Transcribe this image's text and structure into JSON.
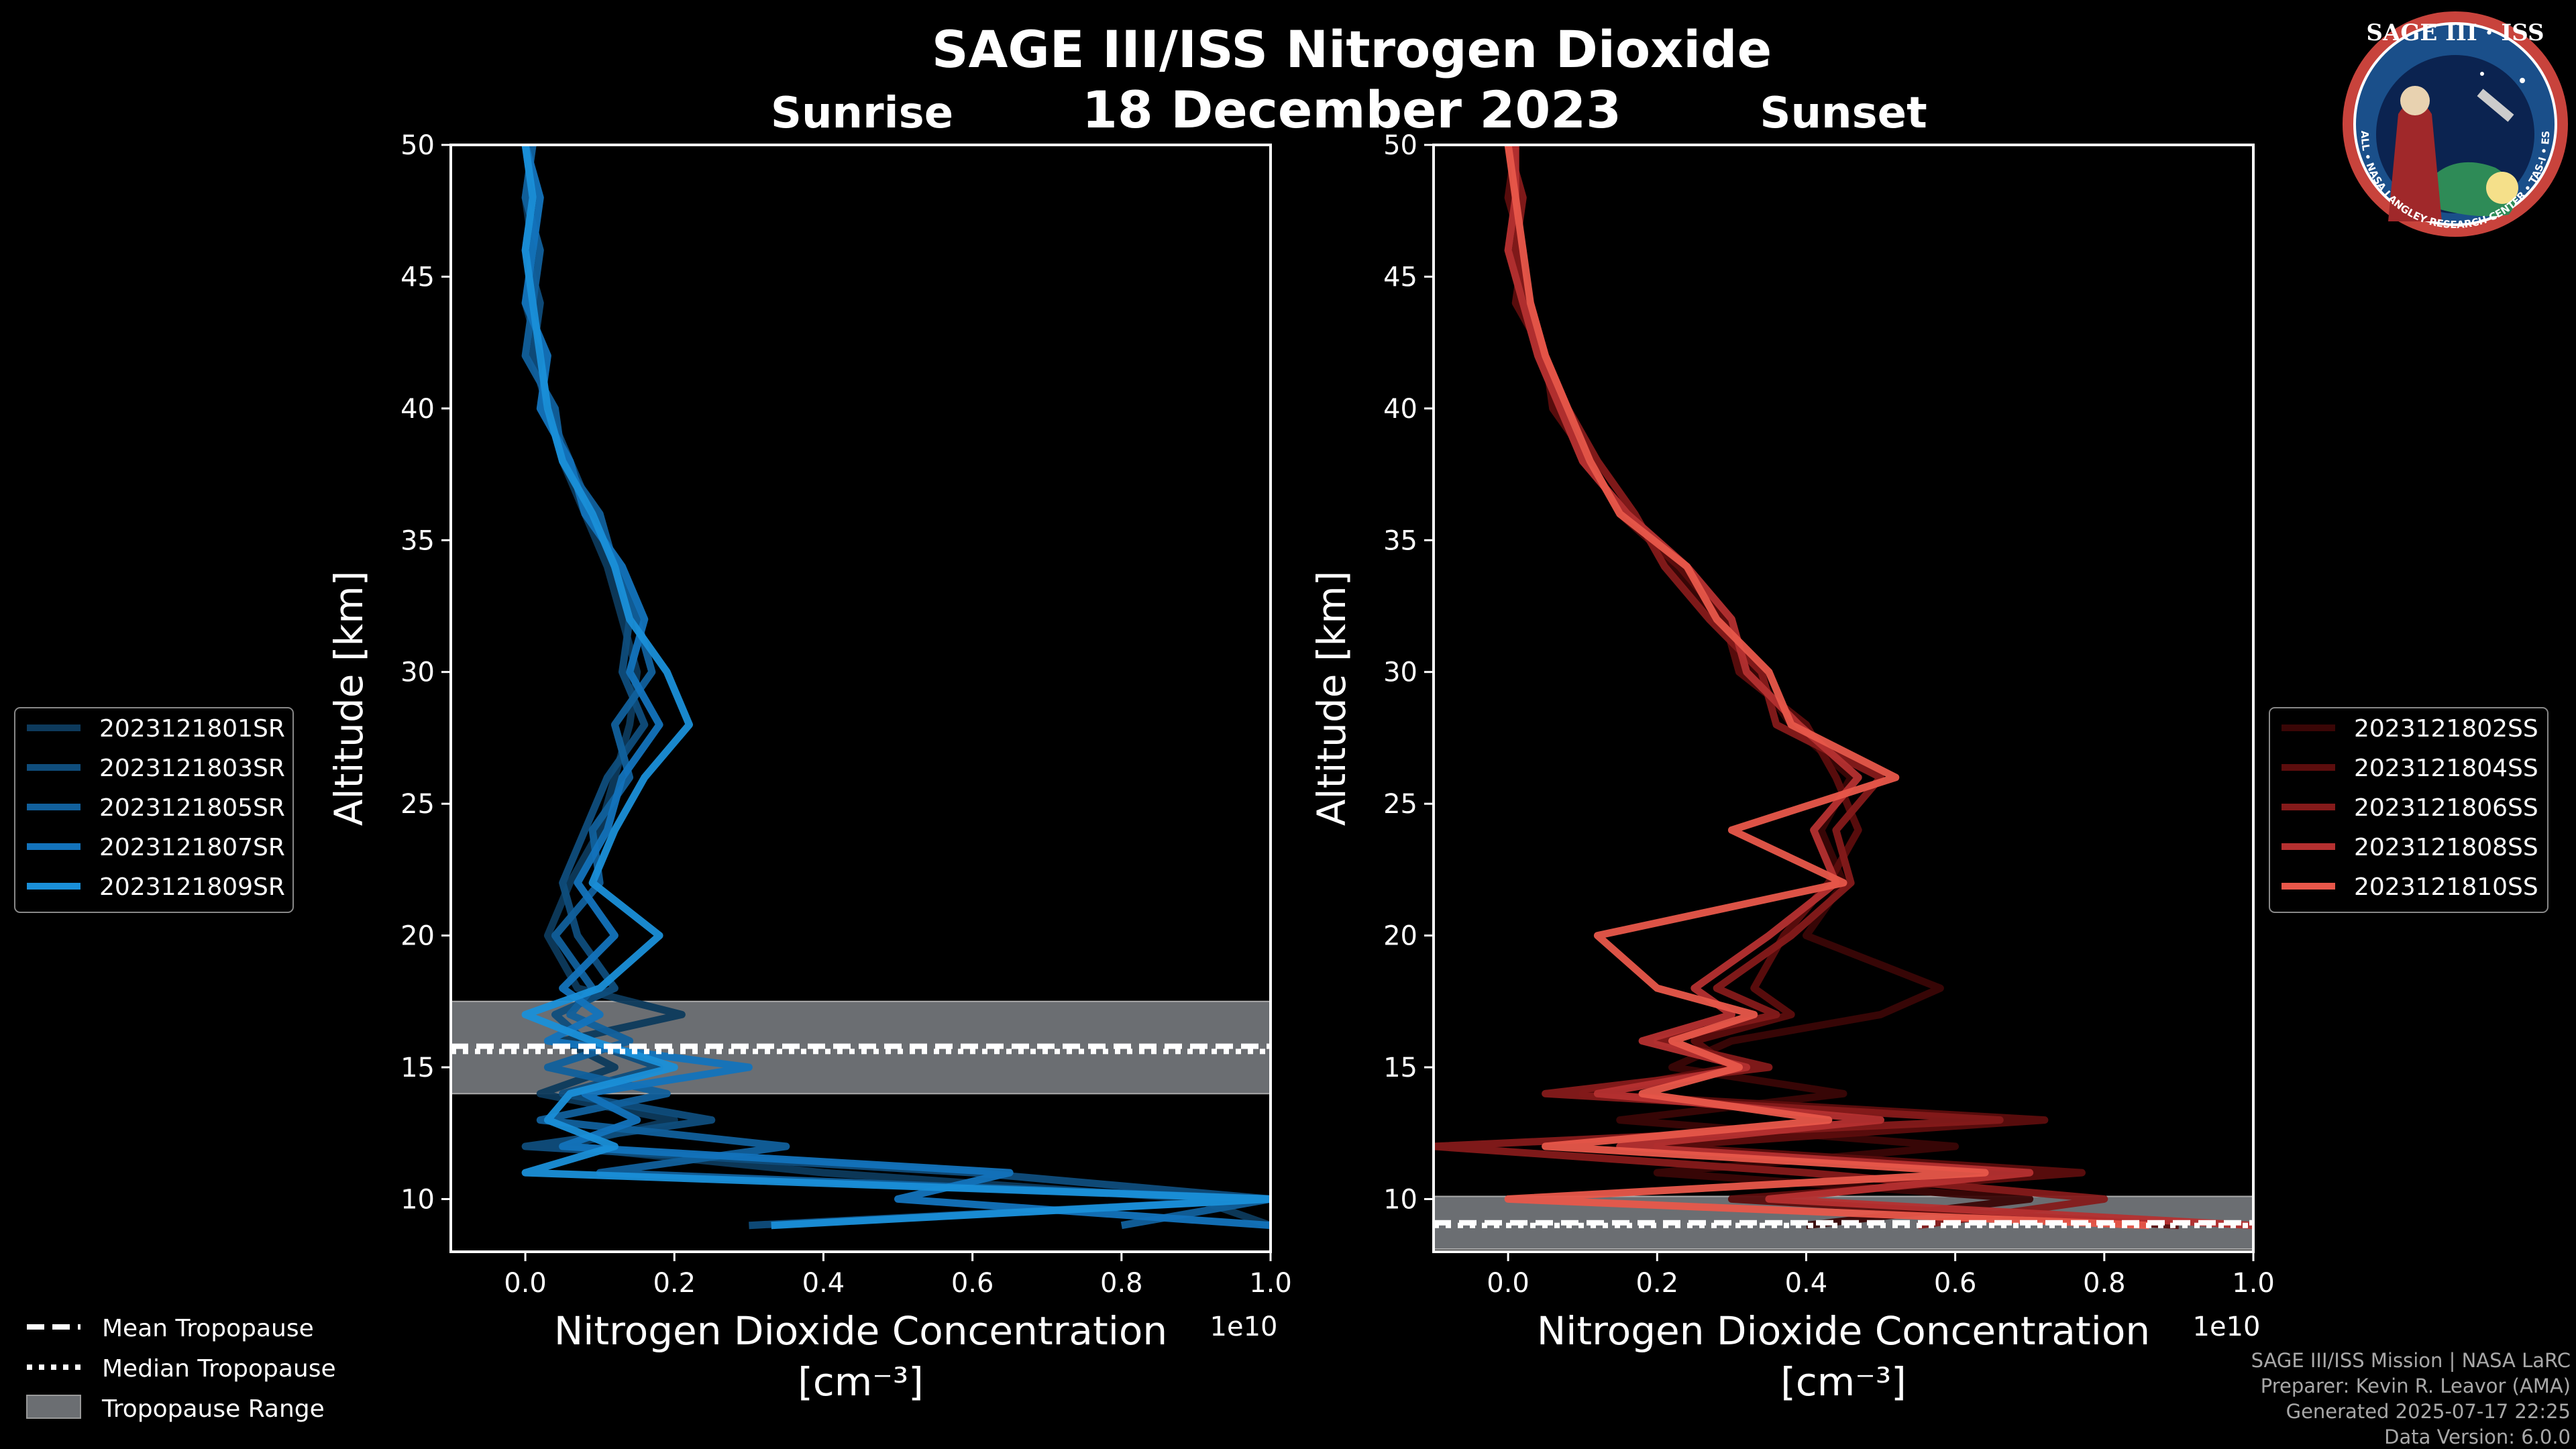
{
  "header": {
    "title": "SAGE III/ISS Nitrogen Dioxide",
    "date": "18 December 2023"
  },
  "logo": {
    "top_text": "SAGE III · ISS",
    "ring_text": "BALL • NASA LANGLEY RESEARCH CENTER • TAS-I • ESA",
    "colors": {
      "ring": "#c8433c",
      "inner": "#1a4f8a",
      "space": "#0b2350"
    }
  },
  "credits": {
    "line1": "SAGE III/ISS Mission | NASA LaRC",
    "line2": "Preparer: Kevin R. Leavor (AMA)",
    "line3": "Generated 2025-07-17 22:25",
    "line4": "Data Version: 6.0.0"
  },
  "tropopause_legend": {
    "mean": "Mean Tropopause",
    "median": "Median Tropopause",
    "range": "Tropopause Range"
  },
  "chart_data": [
    {
      "type": "line",
      "panel": "sunrise",
      "title": "Sunrise",
      "xlabel": "Nitrogen Dioxide Concentration",
      "xunit": "[cm⁻³]",
      "xscale_label": "1e10",
      "ylabel": "Altitude [km]",
      "xlim": [
        -0.1,
        1.0
      ],
      "ylim": [
        8,
        50
      ],
      "xticks": [
        "0.0",
        "0.2",
        "0.4",
        "0.6",
        "0.8",
        "1.0"
      ],
      "yticks": [
        "10",
        "15",
        "20",
        "25",
        "30",
        "35",
        "40",
        "45",
        "50"
      ],
      "legend_position": "left",
      "tropopause": {
        "mean": 15.8,
        "median": 15.6,
        "range": [
          14.0,
          17.5
        ]
      },
      "colors": [
        "#0d3a5c",
        "#0f4d7c",
        "#11609c",
        "#1373bc",
        "#1a8fd8"
      ],
      "series": [
        {
          "name": "2023121801SR",
          "alt": [
            50,
            48,
            46,
            44,
            42,
            40,
            38,
            36,
            34,
            32,
            30,
            28,
            26,
            24,
            22,
            20,
            18,
            17,
            16,
            15,
            14,
            13,
            12,
            11,
            10,
            9
          ],
          "x": [
            0.01,
            0.0,
            0.01,
            0.0,
            0.02,
            0.03,
            0.05,
            0.08,
            0.11,
            0.13,
            0.15,
            0.14,
            0.12,
            0.1,
            0.06,
            0.03,
            0.07,
            0.21,
            0.05,
            0.12,
            0.02,
            0.2,
            0.05,
            0.4,
            0.9,
            1.0
          ]
        },
        {
          "name": "2023121803SR",
          "alt": [
            50,
            48,
            46,
            44,
            42,
            40,
            38,
            36,
            34,
            32,
            30,
            28,
            26,
            24,
            22,
            20,
            18,
            17,
            16,
            15,
            14,
            13,
            12,
            11,
            10,
            9
          ],
          "x": [
            0.0,
            0.01,
            0.0,
            0.02,
            0.01,
            0.03,
            0.06,
            0.09,
            0.12,
            0.14,
            0.13,
            0.16,
            0.11,
            0.08,
            0.05,
            0.07,
            0.12,
            0.04,
            0.08,
            0.18,
            0.05,
            0.25,
            0.0,
            0.6,
            1.0,
            0.3
          ]
        },
        {
          "name": "2023121805SR",
          "alt": [
            50,
            48,
            46,
            44,
            42,
            40,
            38,
            36,
            34,
            32,
            30,
            28,
            26,
            24,
            22,
            20,
            18,
            17,
            16,
            15,
            14,
            13,
            12,
            11,
            10,
            9
          ],
          "x": [
            0.01,
            0.0,
            0.02,
            0.01,
            0.0,
            0.04,
            0.05,
            0.1,
            0.12,
            0.15,
            0.17,
            0.12,
            0.14,
            0.09,
            0.1,
            0.04,
            0.09,
            0.06,
            0.14,
            0.03,
            0.19,
            0.02,
            0.35,
            0.1,
            1.0,
            0.8
          ]
        },
        {
          "name": "2023121807SR",
          "alt": [
            50,
            48,
            46,
            44,
            42,
            40,
            38,
            36,
            34,
            32,
            30,
            28,
            26,
            24,
            22,
            20,
            18,
            17,
            16,
            15,
            14,
            13,
            12,
            11,
            10,
            9
          ],
          "x": [
            0.0,
            0.02,
            0.01,
            0.0,
            0.03,
            0.02,
            0.06,
            0.08,
            0.13,
            0.16,
            0.14,
            0.18,
            0.13,
            0.11,
            0.07,
            0.12,
            0.05,
            0.1,
            0.03,
            0.3,
            0.08,
            0.15,
            0.05,
            0.65,
            0.5,
            1.0
          ]
        },
        {
          "name": "2023121809SR",
          "alt": [
            50,
            48,
            46,
            44,
            42,
            40,
            38,
            36,
            34,
            32,
            30,
            28,
            26,
            24,
            22,
            20,
            18,
            17,
            16,
            15,
            14,
            13,
            12,
            11,
            10,
            9
          ],
          "x": [
            0.0,
            0.01,
            0.0,
            0.01,
            0.02,
            0.03,
            0.05,
            0.09,
            0.12,
            0.14,
            0.19,
            0.22,
            0.16,
            0.12,
            0.09,
            0.18,
            0.1,
            0.0,
            0.09,
            0.2,
            0.06,
            0.03,
            0.12,
            0.0,
            1.0,
            0.33
          ]
        }
      ]
    },
    {
      "type": "line",
      "panel": "sunset",
      "title": "Sunset",
      "xlabel": "Nitrogen Dioxide Concentration",
      "xunit": "[cm⁻³]",
      "xscale_label": "1e10",
      "ylabel": "Altitude [km]",
      "xlim": [
        -0.1,
        1.0
      ],
      "ylim": [
        8,
        50
      ],
      "xticks": [
        "0.0",
        "0.2",
        "0.4",
        "0.6",
        "0.8",
        "1.0"
      ],
      "yticks": [
        "10",
        "15",
        "20",
        "25",
        "30",
        "35",
        "40",
        "45",
        "50"
      ],
      "legend_position": "right",
      "tropopause": {
        "mean": 9.1,
        "median": 9.0,
        "range": [
          8.1,
          10.1
        ]
      },
      "colors": [
        "#3a0606",
        "#5c0d0d",
        "#851a1a",
        "#b53030",
        "#e8574a"
      ],
      "series": [
        {
          "name": "2023121802SS",
          "alt": [
            50,
            48,
            46,
            44,
            42,
            40,
            38,
            36,
            34,
            32,
            30,
            28,
            26,
            24,
            22,
            20,
            18,
            17,
            16,
            15,
            14,
            13,
            12,
            11,
            10,
            9
          ],
          "x": [
            0.0,
            0.01,
            0.0,
            0.02,
            0.04,
            0.07,
            0.1,
            0.16,
            0.22,
            0.28,
            0.33,
            0.38,
            0.46,
            0.42,
            0.45,
            0.4,
            0.58,
            0.5,
            0.3,
            0.22,
            0.45,
            0.15,
            0.6,
            0.2,
            0.7,
            0.4
          ]
        },
        {
          "name": "2023121804SS",
          "alt": [
            50,
            48,
            46,
            44,
            42,
            40,
            38,
            36,
            34,
            32,
            30,
            28,
            26,
            24,
            22,
            20,
            18,
            17,
            16,
            15,
            14,
            13,
            12,
            11,
            10,
            9
          ],
          "x": [
            0.01,
            0.0,
            0.02,
            0.01,
            0.05,
            0.06,
            0.11,
            0.15,
            0.23,
            0.29,
            0.31,
            0.4,
            0.44,
            0.47,
            0.43,
            0.37,
            0.33,
            0.38,
            0.25,
            0.3,
            0.1,
            0.72,
            0.2,
            0.77,
            0.3,
            0.9
          ]
        },
        {
          "name": "2023121806SS",
          "alt": [
            50,
            48,
            46,
            44,
            42,
            40,
            38,
            36,
            34,
            32,
            30,
            28,
            26,
            24,
            22,
            20,
            18,
            17,
            16,
            15,
            14,
            13,
            12,
            11,
            10,
            9
          ],
          "x": [
            0.0,
            0.02,
            0.01,
            0.03,
            0.05,
            0.08,
            0.12,
            0.17,
            0.21,
            0.27,
            0.34,
            0.36,
            0.5,
            0.44,
            0.46,
            0.38,
            0.28,
            0.36,
            0.2,
            0.35,
            0.05,
            0.66,
            -0.1,
            0.4,
            0.8,
            0.55
          ]
        },
        {
          "name": "2023121808SS",
          "alt": [
            50,
            48,
            46,
            44,
            42,
            40,
            38,
            36,
            34,
            32,
            30,
            28,
            26,
            24,
            22,
            20,
            18,
            17,
            16,
            15,
            14,
            13,
            12,
            11,
            10,
            9
          ],
          "x": [
            0.01,
            0.01,
            0.0,
            0.02,
            0.04,
            0.07,
            0.1,
            0.16,
            0.24,
            0.3,
            0.32,
            0.39,
            0.47,
            0.41,
            0.44,
            0.35,
            0.25,
            0.3,
            0.18,
            0.32,
            0.12,
            0.5,
            0.15,
            0.7,
            0.35,
            1.0
          ]
        },
        {
          "name": "2023121810SS",
          "alt": [
            50,
            48,
            46,
            44,
            42,
            40,
            38,
            36,
            34,
            32,
            30,
            28,
            26,
            24,
            22,
            20,
            18,
            17,
            16,
            15,
            14,
            13,
            12,
            11,
            10,
            9
          ],
          "x": [
            0.0,
            0.01,
            0.02,
            0.03,
            0.05,
            0.08,
            0.11,
            0.15,
            0.24,
            0.28,
            0.35,
            0.38,
            0.52,
            0.3,
            0.45,
            0.12,
            0.2,
            0.33,
            0.22,
            0.31,
            0.18,
            0.43,
            0.05,
            0.64,
            0.0,
            0.86
          ]
        }
      ]
    }
  ]
}
